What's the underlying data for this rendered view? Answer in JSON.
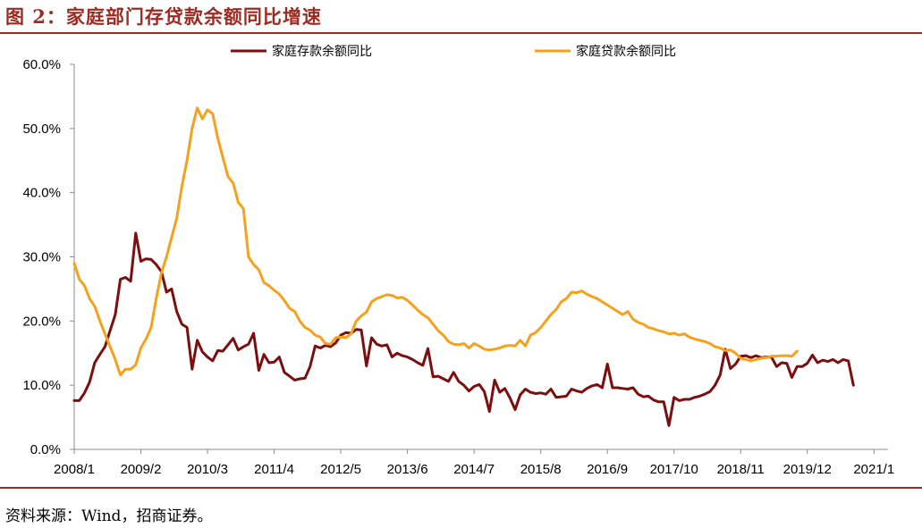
{
  "title": "图 2：家庭部门存贷款余额同比增速",
  "source": "资料来源：Wind，招商证券。",
  "colors": {
    "accent": "#9e2a22",
    "deposit": "#7b0e0e",
    "loan": "#f6a11b"
  },
  "chart_data": {
    "type": "line",
    "yticks": [
      "0.0%",
      "10.0%",
      "20.0%",
      "30.0%",
      "40.0%",
      "50.0%",
      "60.0%"
    ],
    "ylim": [
      0,
      60
    ],
    "xlim": [
      0,
      157
    ],
    "xticks": [
      {
        "idx": 0,
        "label": "2008/1"
      },
      {
        "idx": 13,
        "label": "2009/2"
      },
      {
        "idx": 26,
        "label": "2010/3"
      },
      {
        "idx": 39,
        "label": "2011/4"
      },
      {
        "idx": 52,
        "label": "2012/5"
      },
      {
        "idx": 65,
        "label": "2013/6"
      },
      {
        "idx": 78,
        "label": "2014/7"
      },
      {
        "idx": 91,
        "label": "2015/8"
      },
      {
        "idx": 104,
        "label": "2016/9"
      },
      {
        "idx": 117,
        "label": "2017/10"
      },
      {
        "idx": 130,
        "label": "2018/11"
      },
      {
        "idx": 143,
        "label": "2019/12"
      },
      {
        "idx": 156,
        "label": "2021/1"
      }
    ],
    "legend_position": "top",
    "grid": false,
    "series": [
      {
        "name": "家庭存款余额同比",
        "color": "#7b0e0e",
        "points": [
          [
            0,
            7.6
          ],
          [
            1,
            7.6
          ],
          [
            2,
            8.8
          ],
          [
            3,
            10.5
          ],
          [
            4,
            13.5
          ],
          [
            5,
            14.8
          ],
          [
            6,
            16.0
          ],
          [
            7,
            18.5
          ],
          [
            8,
            21.0
          ],
          [
            9,
            26.5
          ],
          [
            10,
            26.8
          ],
          [
            11,
            26.2
          ],
          [
            12,
            33.7
          ],
          [
            13,
            29.3
          ],
          [
            14,
            29.7
          ],
          [
            15,
            29.6
          ],
          [
            16,
            28.8
          ],
          [
            17,
            27.7
          ],
          [
            18,
            24.5
          ],
          [
            19,
            25.0
          ],
          [
            20,
            21.5
          ],
          [
            21,
            19.5
          ],
          [
            22,
            19.0
          ],
          [
            23,
            12.5
          ],
          [
            24,
            17.0
          ],
          [
            25,
            15.2
          ],
          [
            26,
            14.4
          ],
          [
            27,
            13.8
          ],
          [
            28,
            15.4
          ],
          [
            29,
            15.3
          ],
          [
            30,
            16.3
          ],
          [
            31,
            17.3
          ],
          [
            32,
            15.5
          ],
          [
            33,
            16.0
          ],
          [
            34,
            16.4
          ],
          [
            35,
            18.1
          ],
          [
            36,
            12.3
          ],
          [
            37,
            14.8
          ],
          [
            38,
            13.5
          ],
          [
            39,
            13.6
          ],
          [
            40,
            14.4
          ],
          [
            41,
            12.0
          ],
          [
            42,
            11.4
          ],
          [
            43,
            10.8
          ],
          [
            44,
            11.0
          ],
          [
            45,
            11.1
          ],
          [
            46,
            12.9
          ],
          [
            47,
            16.1
          ],
          [
            48,
            15.8
          ],
          [
            49,
            16.2
          ],
          [
            50,
            16.0
          ],
          [
            51,
            16.6
          ],
          [
            52,
            17.8
          ],
          [
            53,
            18.2
          ],
          [
            54,
            18.1
          ],
          [
            55,
            18.7
          ],
          [
            56,
            18.6
          ],
          [
            57,
            13.0
          ],
          [
            58,
            17.4
          ],
          [
            59,
            16.4
          ],
          [
            60,
            16.1
          ],
          [
            61,
            16.3
          ],
          [
            62,
            14.4
          ],
          [
            63,
            15.0
          ],
          [
            64,
            14.6
          ],
          [
            65,
            14.4
          ],
          [
            66,
            14.0
          ],
          [
            67,
            13.5
          ],
          [
            68,
            13.1
          ],
          [
            69,
            15.7
          ],
          [
            70,
            11.3
          ],
          [
            71,
            11.4
          ],
          [
            72,
            11.0
          ],
          [
            73,
            10.6
          ],
          [
            74,
            12.0
          ],
          [
            75,
            10.6
          ],
          [
            76,
            10.0
          ],
          [
            77,
            9.1
          ],
          [
            78,
            9.8
          ],
          [
            79,
            10.1
          ],
          [
            80,
            9.0
          ],
          [
            81,
            5.9
          ],
          [
            82,
            10.8
          ],
          [
            83,
            8.9
          ],
          [
            84,
            9.5
          ],
          [
            85,
            8.0
          ],
          [
            86,
            6.2
          ],
          [
            87,
            8.5
          ],
          [
            88,
            9.4
          ],
          [
            89,
            8.9
          ],
          [
            90,
            8.7
          ],
          [
            91,
            8.8
          ],
          [
            92,
            8.6
          ],
          [
            93,
            9.4
          ],
          [
            94,
            8.1
          ],
          [
            95,
            8.2
          ],
          [
            96,
            8.3
          ],
          [
            97,
            9.4
          ],
          [
            98,
            9.1
          ],
          [
            99,
            8.9
          ],
          [
            100,
            9.5
          ],
          [
            101,
            9.9
          ],
          [
            102,
            10.1
          ],
          [
            103,
            9.6
          ],
          [
            104,
            13.3
          ],
          [
            105,
            9.6
          ],
          [
            106,
            9.6
          ],
          [
            107,
            9.5
          ],
          [
            108,
            9.4
          ],
          [
            109,
            9.6
          ],
          [
            110,
            8.6
          ],
          [
            111,
            8.2
          ],
          [
            112,
            8.3
          ],
          [
            113,
            7.7
          ],
          [
            114,
            7.4
          ],
          [
            115,
            7.4
          ],
          [
            116,
            3.7
          ],
          [
            117,
            8.1
          ],
          [
            118,
            7.6
          ],
          [
            119,
            7.8
          ],
          [
            120,
            7.8
          ],
          [
            121,
            8.1
          ],
          [
            122,
            8.3
          ],
          [
            123,
            8.6
          ],
          [
            124,
            9.0
          ],
          [
            125,
            10.0
          ],
          [
            126,
            11.6
          ],
          [
            127,
            15.6
          ],
          [
            128,
            12.6
          ],
          [
            129,
            13.3
          ],
          [
            130,
            14.5
          ],
          [
            131,
            14.6
          ],
          [
            132,
            14.3
          ],
          [
            133,
            14.6
          ],
          [
            134,
            14.3
          ],
          [
            135,
            14.4
          ],
          [
            136,
            14.4
          ],
          [
            137,
            12.9
          ],
          [
            138,
            13.5
          ],
          [
            139,
            13.4
          ],
          [
            140,
            11.2
          ],
          [
            141,
            12.9
          ],
          [
            142,
            12.9
          ],
          [
            143,
            13.4
          ],
          [
            144,
            14.7
          ],
          [
            145,
            13.5
          ],
          [
            146,
            13.9
          ],
          [
            147,
            13.7
          ],
          [
            148,
            14.0
          ],
          [
            149,
            13.5
          ],
          [
            150,
            14.0
          ],
          [
            151,
            13.8
          ],
          [
            152,
            10.0
          ]
        ]
      },
      {
        "name": "家庭贷款余额同比",
        "color": "#f6a11b",
        "points": [
          [
            0,
            29.0
          ],
          [
            1,
            26.5
          ],
          [
            2,
            25.5
          ],
          [
            3,
            23.5
          ],
          [
            4,
            22.3
          ],
          [
            5,
            20.0
          ],
          [
            6,
            18.0
          ],
          [
            7,
            16.0
          ],
          [
            8,
            14.0
          ],
          [
            9,
            11.6
          ],
          [
            10,
            12.5
          ],
          [
            11,
            12.5
          ],
          [
            12,
            13.2
          ],
          [
            13,
            15.8
          ],
          [
            14,
            17.2
          ],
          [
            15,
            19.0
          ],
          [
            16,
            23.5
          ],
          [
            17,
            27.5
          ],
          [
            18,
            30.0
          ],
          [
            19,
            33.0
          ],
          [
            20,
            36.0
          ],
          [
            21,
            41.0
          ],
          [
            22,
            45.0
          ],
          [
            23,
            50.0
          ],
          [
            24,
            53.2
          ],
          [
            25,
            51.5
          ],
          [
            26,
            52.9
          ],
          [
            27,
            52.3
          ],
          [
            28,
            48.5
          ],
          [
            29,
            45.5
          ],
          [
            30,
            42.5
          ],
          [
            31,
            41.5
          ],
          [
            32,
            38.5
          ],
          [
            33,
            37.5
          ],
          [
            34,
            30.0
          ],
          [
            35,
            28.8
          ],
          [
            36,
            28.0
          ],
          [
            37,
            26.0
          ],
          [
            38,
            25.5
          ],
          [
            39,
            24.8
          ],
          [
            40,
            24.2
          ],
          [
            41,
            23.2
          ],
          [
            42,
            22.0
          ],
          [
            43,
            21.5
          ],
          [
            44,
            20.0
          ],
          [
            45,
            19.0
          ],
          [
            46,
            18.6
          ],
          [
            47,
            17.8
          ],
          [
            48,
            17.5
          ],
          [
            49,
            16.5
          ],
          [
            50,
            16.4
          ],
          [
            51,
            17.4
          ],
          [
            52,
            17.5
          ],
          [
            53,
            17.4
          ],
          [
            54,
            18.0
          ],
          [
            55,
            20.0
          ],
          [
            56,
            20.8
          ],
          [
            57,
            21.4
          ],
          [
            58,
            23.0
          ],
          [
            59,
            23.5
          ],
          [
            60,
            23.8
          ],
          [
            61,
            24.1
          ],
          [
            62,
            24.0
          ],
          [
            63,
            23.6
          ],
          [
            64,
            23.7
          ],
          [
            65,
            23.2
          ],
          [
            66,
            22.5
          ],
          [
            67,
            21.7
          ],
          [
            68,
            21.0
          ],
          [
            69,
            20.5
          ],
          [
            70,
            19.5
          ],
          [
            71,
            18.5
          ],
          [
            72,
            17.8
          ],
          [
            73,
            16.8
          ],
          [
            74,
            16.4
          ],
          [
            75,
            16.3
          ],
          [
            76,
            16.5
          ],
          [
            77,
            15.8
          ],
          [
            78,
            16.5
          ],
          [
            79,
            16.1
          ],
          [
            80,
            15.6
          ],
          [
            81,
            15.5
          ],
          [
            82,
            15.6
          ],
          [
            83,
            15.8
          ],
          [
            84,
            16.1
          ],
          [
            85,
            16.2
          ],
          [
            86,
            16.1
          ],
          [
            87,
            17.0
          ],
          [
            88,
            16.1
          ],
          [
            89,
            17.8
          ],
          [
            90,
            18.2
          ],
          [
            91,
            19.0
          ],
          [
            92,
            20.0
          ],
          [
            93,
            21.0
          ],
          [
            94,
            21.8
          ],
          [
            95,
            23.0
          ],
          [
            96,
            23.5
          ],
          [
            97,
            24.5
          ],
          [
            98,
            24.4
          ],
          [
            99,
            24.7
          ],
          [
            100,
            24.2
          ],
          [
            101,
            23.8
          ],
          [
            102,
            23.5
          ],
          [
            103,
            23.0
          ],
          [
            104,
            22.5
          ],
          [
            105,
            22.0
          ],
          [
            106,
            21.5
          ],
          [
            107,
            21.0
          ],
          [
            108,
            21.5
          ],
          [
            109,
            20.3
          ],
          [
            110,
            19.8
          ],
          [
            111,
            19.5
          ],
          [
            112,
            19.0
          ],
          [
            113,
            18.8
          ],
          [
            114,
            18.5
          ],
          [
            115,
            18.3
          ],
          [
            116,
            18.0
          ],
          [
            117,
            18.1
          ],
          [
            118,
            17.8
          ],
          [
            119,
            18.0
          ],
          [
            120,
            17.5
          ],
          [
            121,
            17.2
          ],
          [
            122,
            17.0
          ],
          [
            123,
            16.8
          ],
          [
            124,
            16.5
          ],
          [
            125,
            16.0
          ],
          [
            126,
            15.8
          ],
          [
            127,
            15.4
          ],
          [
            128,
            15.5
          ],
          [
            129,
            15.0
          ],
          [
            130,
            14.2
          ],
          [
            131,
            14.0
          ],
          [
            132,
            13.8
          ],
          [
            133,
            14.0
          ],
          [
            134,
            14.2
          ],
          [
            135,
            14.3
          ],
          [
            136,
            14.5
          ],
          [
            137,
            14.5
          ],
          [
            138,
            14.6
          ],
          [
            139,
            14.6
          ],
          [
            140,
            14.5
          ],
          [
            141,
            15.3
          ]
        ]
      }
    ]
  }
}
